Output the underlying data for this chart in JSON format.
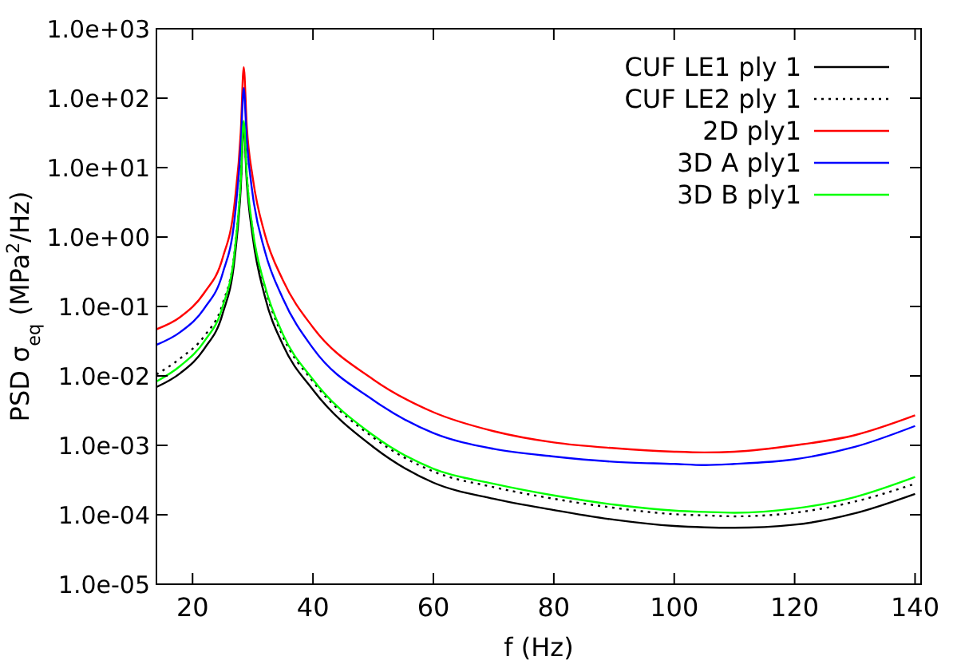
{
  "chart_data": {
    "type": "line",
    "xlabel": "f (Hz)",
    "ylabel": "PSD σ$_{eq}$ (MPa$^{2}$/Hz)",
    "x": [
      14,
      18,
      22,
      25,
      27,
      28,
      28.5,
      29,
      30,
      32,
      35,
      40,
      50,
      60,
      70,
      80,
      90,
      100,
      105,
      110,
      120,
      130,
      140
    ],
    "xlim": [
      14,
      141
    ],
    "xticks": [
      20,
      40,
      60,
      80,
      100,
      120,
      140
    ],
    "ylim": [
      1e-05,
      1000
    ],
    "log": "y",
    "yticks": [
      {
        "value": 1e-05,
        "label": "1.0e-05"
      },
      {
        "value": 0.0001,
        "label": "1.0e-04"
      },
      {
        "value": 0.001,
        "label": "1.0e-03"
      },
      {
        "value": 0.01,
        "label": "1.0e-02"
      },
      {
        "value": 0.1,
        "label": "1.0e-01"
      },
      {
        "value": 1,
        "label": "1.0e+00"
      },
      {
        "value": 10,
        "label": "1.0e+01"
      },
      {
        "value": 100,
        "label": "1.0e+02"
      },
      {
        "value": 1000,
        "label": "1.0e+03"
      }
    ],
    "legend": "top right",
    "grid": false,
    "series": [
      {
        "name": "CUF LE1 ply 1",
        "color": "#000000",
        "line_style": "solid",
        "values": [
          0.0069,
          0.011,
          0.025,
          0.079,
          0.5,
          5,
          40,
          6.3,
          1.0,
          0.14,
          0.028,
          0.0063,
          0.00095,
          0.00029,
          0.00017,
          0.000117,
          8.5e-05,
          6.9e-05,
          6.6e-05,
          6.5e-05,
          7.2e-05,
          0.000105,
          0.0002
        ]
      },
      {
        "name": "CUF LE2 ply 1",
        "color": "#000000",
        "line_style": "dotted",
        "values": [
          0.0105,
          0.018,
          0.038,
          0.11,
          0.63,
          6.3,
          45,
          7.9,
          1.2,
          0.19,
          0.037,
          0.0083,
          0.0013,
          0.00042,
          0.00025,
          0.00017,
          0.000126,
          0.000102,
          9.8e-05,
          9.5e-05,
          0.000107,
          0.000155,
          0.00028
        ]
      },
      {
        "name": "2D ply1",
        "color": "#ff0000",
        "line_style": "solid",
        "values": [
          0.047,
          0.071,
          0.16,
          0.5,
          3.2,
          32,
          280,
          40,
          7.1,
          1.1,
          0.24,
          0.05,
          0.0089,
          0.003,
          0.0016,
          0.0011,
          0.00091,
          0.00081,
          0.00079,
          0.00081,
          0.001,
          0.0014,
          0.0027
        ]
      },
      {
        "name": "3D A ply1",
        "color": "#0000ff",
        "line_style": "solid",
        "values": [
          0.028,
          0.043,
          0.095,
          0.3,
          1.9,
          20,
          140,
          25,
          4,
          0.63,
          0.13,
          0.025,
          0.0045,
          0.0015,
          0.00089,
          0.00069,
          0.00058,
          0.00054,
          0.00052,
          0.00054,
          0.00063,
          0.00095,
          0.0019
        ]
      },
      {
        "name": "3D B ply1",
        "color": "#00ff00",
        "line_style": "solid",
        "values": [
          0.0083,
          0.014,
          0.032,
          0.1,
          0.63,
          6.3,
          47,
          7.9,
          1.26,
          0.2,
          0.04,
          0.0089,
          0.0014,
          0.00046,
          0.00028,
          0.00019,
          0.00014,
          0.000115,
          0.00011,
          0.000107,
          0.000123,
          0.00018,
          0.00035
        ]
      }
    ]
  }
}
